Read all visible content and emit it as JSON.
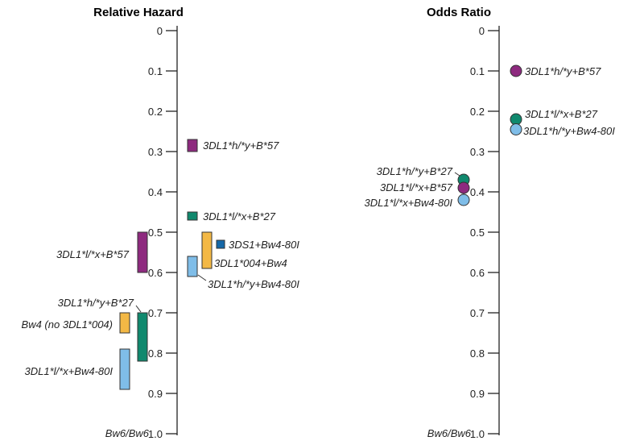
{
  "chart_data": [
    {
      "type": "range-bar",
      "title": "Relative Hazard",
      "ylim": [
        0,
        1.0
      ],
      "yticks": [
        "0",
        "0.1",
        "0.2",
        "0.3",
        "0.4",
        "0.5",
        "0.6",
        "0.7",
        "0.8",
        "0.9",
        "1.0"
      ],
      "baseline_label": "Bw6/Bw6",
      "grid": false,
      "series": [
        {
          "label": "3DL1*h/*y+B*57",
          "color": "#8e2a7f",
          "low": 0.27,
          "high": 0.3,
          "side": "right"
        },
        {
          "label": "3DL1*l/*x+B*27",
          "color": "#10896e",
          "low": 0.45,
          "high": 0.47,
          "side": "right"
        },
        {
          "label": "3DS1+Bw4-80I",
          "color": "#1568a8",
          "low": 0.52,
          "high": 0.54,
          "side": "right"
        },
        {
          "label": "3DL1*004+Bw4",
          "color": "#f3b845",
          "low": 0.5,
          "high": 0.59,
          "side": "right"
        },
        {
          "label": "3DL1*h/*y+Bw4-80I",
          "color": "#7fbde8",
          "low": 0.56,
          "high": 0.61,
          "side": "right"
        },
        {
          "label": "3DL1*l/*x+B*57",
          "color": "#8e2a7f",
          "low": 0.5,
          "high": 0.6,
          "side": "left"
        },
        {
          "label": "3DL1*h/*y+B*27",
          "color": "#10896e",
          "low": 0.7,
          "high": 0.82,
          "side": "left"
        },
        {
          "label": "Bw4 (no 3DL1*004)",
          "color": "#f3b845",
          "low": 0.7,
          "high": 0.75,
          "side": "left"
        },
        {
          "label": "3DL1*l/*x+Bw4-80I",
          "color": "#7fbde8",
          "low": 0.79,
          "high": 0.89,
          "side": "left"
        }
      ]
    },
    {
      "type": "scatter",
      "title": "Odds Ratio",
      "ylim": [
        0,
        1.0
      ],
      "yticks": [
        "0",
        "0.1",
        "0.2",
        "0.3",
        "0.4",
        "0.5",
        "0.6",
        "0.7",
        "0.8",
        "0.9",
        "1.0"
      ],
      "baseline_label": "Bw6/Bw6",
      "grid": false,
      "series": [
        {
          "label": "3DL1*h/*y+B*57",
          "color": "#8e2a7f",
          "value": 0.1,
          "side": "right"
        },
        {
          "label": "3DL1*l/*x+B*27",
          "color": "#10896e",
          "value": 0.22,
          "side": "right"
        },
        {
          "label": "3DL1*h/*y+Bw4-80I",
          "color": "#7fbde8",
          "value": 0.245,
          "side": "right"
        },
        {
          "label": "3DL1*h/*y+B*27",
          "color": "#10896e",
          "value": 0.37,
          "side": "left"
        },
        {
          "label": "3DL1*l/*x+B*57",
          "color": "#8e2a7f",
          "value": 0.39,
          "side": "left"
        },
        {
          "label": "3DL1*l/*x+Bw4-80I",
          "color": "#7fbde8",
          "value": 0.42,
          "side": "left"
        }
      ]
    }
  ]
}
